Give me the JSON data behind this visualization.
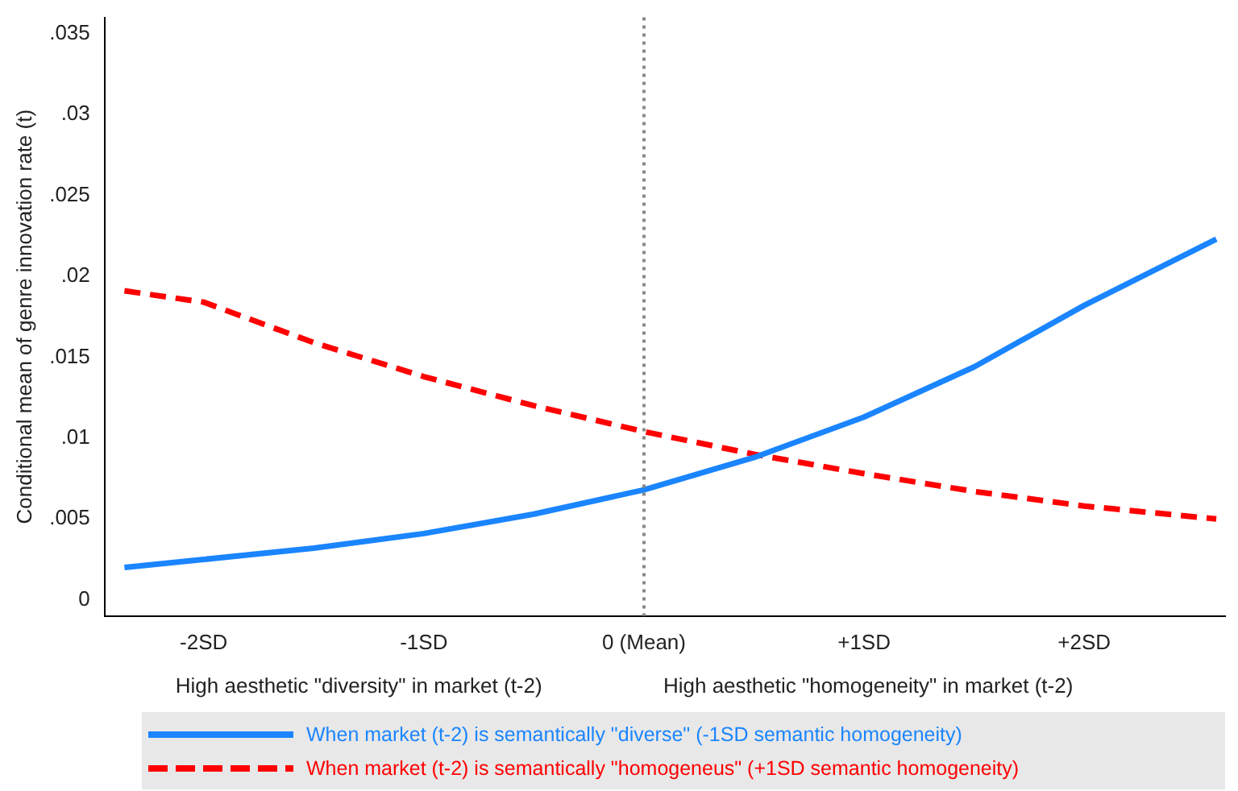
{
  "chart_data": {
    "type": "line",
    "ylabel": "Conditional mean of genre innovation rate (t)",
    "annotations": [
      "High aesthetic \"diversity\" in market (t-2)",
      "High aesthetic \"homogeneity\" in market (t-2)"
    ],
    "x": [
      -2.36,
      -2,
      -1.5,
      -1,
      -0.5,
      0,
      0.5,
      1,
      1.5,
      2,
      2.6
    ],
    "series": [
      {
        "name": "When market (t-2) is semantically \"diverse\" (-1SD semantic homogeneity)",
        "color": "#1a85ff",
        "line_style": "solid",
        "values": [
          0.002,
          0.0025,
          0.0032,
          0.0041,
          0.0053,
          0.0068,
          0.0088,
          0.0113,
          0.0144,
          0.0182,
          0.0223
        ]
      },
      {
        "name": "When market (t-2) is semantically \"homogeneus\" (+1SD semantic homogeneity)",
        "color": "#ff0000",
        "line_style": "dashed",
        "values": [
          0.0191,
          0.0184,
          0.0159,
          0.0138,
          0.012,
          0.0104,
          0.009,
          0.0078,
          0.0067,
          0.0058,
          0.005
        ]
      }
    ],
    "xlim": [
      -2.45,
      2.64
    ],
    "xticks": [
      {
        "value": -2,
        "label": "-2SD"
      },
      {
        "value": -1,
        "label": "-1SD"
      },
      {
        "value": 0,
        "label": "0 (Mean)"
      },
      {
        "value": 1,
        "label": "+1SD"
      },
      {
        "value": 2,
        "label": "+2SD"
      }
    ],
    "ylim": [
      -0.001,
      0.036
    ],
    "yticks": [
      0,
      {
        "value": 0.005,
        "label": ".005"
      },
      {
        "value": 0.01,
        "label": ".01"
      },
      {
        "value": 0.015,
        "label": ".015"
      },
      {
        "value": 0.02,
        "label": ".02"
      },
      {
        "value": 0.025,
        "label": ".025"
      },
      {
        "value": 0.03,
        "label": ".03"
      },
      {
        "value": 0.035,
        "label": ".035"
      }
    ],
    "ref_lines": [
      {
        "axis": "x",
        "value": 0,
        "color": "#888888",
        "line_style": "dotted"
      }
    ],
    "grid": false,
    "legend": "bottom",
    "marker": "none"
  }
}
